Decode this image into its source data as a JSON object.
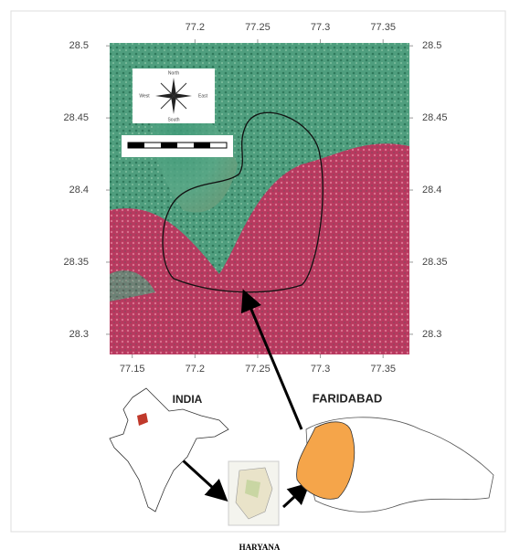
{
  "map": {
    "xlim": [
      77.132,
      77.371
    ],
    "ylim": [
      28.286,
      28.502
    ],
    "x_ticks_top": [
      77.2,
      77.25,
      77.3,
      77.35
    ],
    "x_ticks_bottom": [
      77.15,
      77.2,
      77.25,
      77.3,
      77.35
    ],
    "y_ticks_left": [
      28.5,
      28.45,
      28.4,
      28.35,
      28.3
    ],
    "y_ticks_right": [
      28.5,
      28.45,
      28.4,
      28.35,
      28.3
    ],
    "compass": {
      "north": "North",
      "south": "South",
      "east": "East",
      "west": "West"
    }
  },
  "inset": {
    "india_label": "INDIA",
    "district_label": "FARIDABAD"
  },
  "caption": "HARYANA"
}
